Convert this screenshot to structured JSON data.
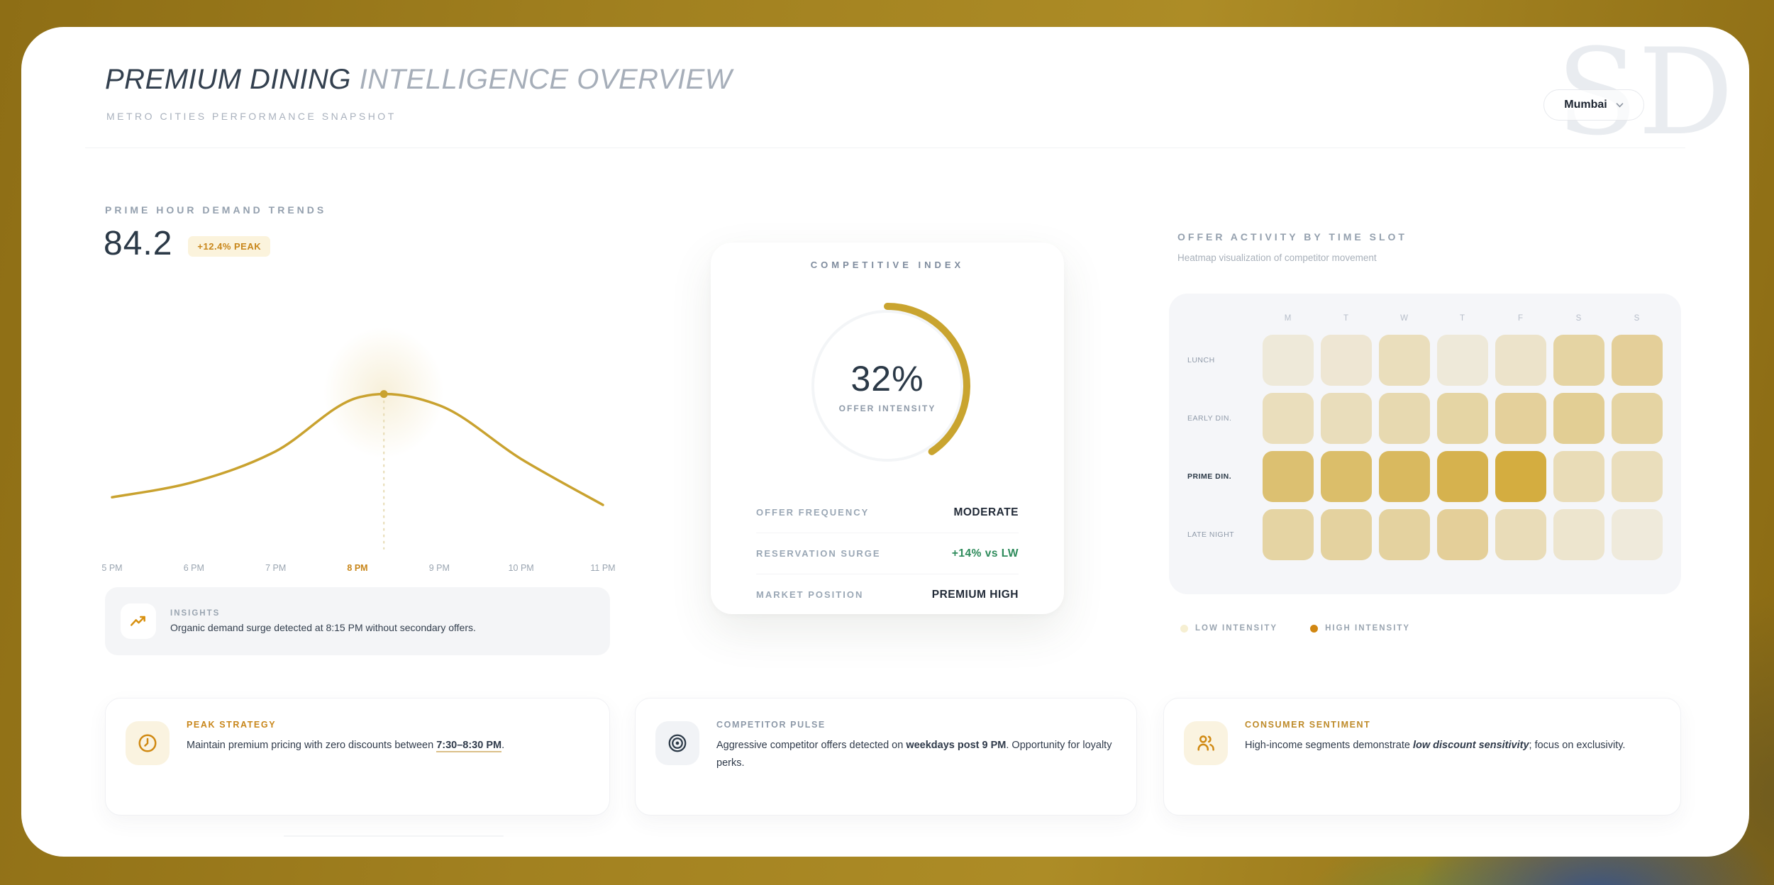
{
  "header": {
    "title_primary": "PREMIUM DINING",
    "title_secondary": "INTELLIGENCE OVERVIEW",
    "subtitle": "METRO CITIES PERFORMANCE SNAPSHOT",
    "city": "Mumbai",
    "watermark": "SD"
  },
  "demand": {
    "section_title": "PRIME HOUR DEMAND TRENDS",
    "score": "84.2",
    "badge": "+12.4% PEAK",
    "insights_label": "INSIGHTS",
    "insights_text": "Organic demand surge detected at 8:15 PM without secondary offers."
  },
  "competitive": {
    "title": "COMPETITIVE INDEX",
    "gauge_value": "32%",
    "gauge_percent": 32,
    "gauge_caption": "OFFER INTENSITY",
    "gauge_color": "#C9A42F",
    "rows": [
      {
        "label": "OFFER FREQUENCY",
        "value": "MODERATE",
        "value_color": "#222B38"
      },
      {
        "label": "RESERVATION SURGE",
        "value": "+14% vs LW",
        "value_color": "#2E8B5B"
      },
      {
        "label": "MARKET POSITION",
        "value": "PREMIUM HIGH",
        "value_color": "#222B38"
      }
    ]
  },
  "offer_activity": {
    "title": "OFFER ACTIVITY BY TIME SLOT",
    "subtitle": "Heatmap visualization of competitor movement",
    "legend": [
      {
        "label": "LOW INTENSITY",
        "color": "#F6EFD2"
      },
      {
        "label": "HIGH INTENSITY",
        "color": "#D18712"
      }
    ]
  },
  "insight_cards": [
    {
      "title": "PEAK STRATEGY",
      "icon": "clock-icon",
      "title_color": "#C8861A",
      "text": [
        {
          "t": "Maintain premium pricing with zero discounts between "
        },
        {
          "t": "7:30–8:30 PM",
          "b": true,
          "u": true
        },
        {
          "t": "."
        }
      ]
    },
    {
      "title": "COMPETITOR PULSE",
      "icon": "target-icon",
      "title_color": "#8D99A8",
      "text": [
        {
          "t": "Aggressive competitor offers detected on "
        },
        {
          "t": "weekdays post 9 PM",
          "b": true
        },
        {
          "t": ". Opportunity for loyalty perks."
        }
      ]
    },
    {
      "title": "CONSUMER SENTIMENT",
      "icon": "users-icon",
      "title_color": "#BE8A28",
      "text": [
        {
          "t": "High-income segments demonstrate "
        },
        {
          "t": "low discount sensitivity",
          "b": true,
          "i": true
        },
        {
          "t": "; focus on exclusivity."
        }
      ]
    }
  ],
  "chart_data": [
    {
      "type": "line",
      "title": "Prime Hour Demand Trends",
      "x": [
        "5 PM",
        "6 PM",
        "7 PM",
        "8 PM",
        "9 PM",
        "10 PM",
        "11 PM"
      ],
      "values": [
        32,
        36,
        44,
        58,
        56,
        42,
        30
      ],
      "ylim": [
        0,
        100
      ],
      "highlight_x": "8 PM",
      "peak_annotation": "organic surge at 8:15 PM",
      "line_color": "#C9A22F",
      "marker_color": "#C9A22F",
      "legend_position": "none",
      "grid": false
    },
    {
      "type": "heatmap",
      "title": "Offer Activity by Time Slot",
      "columns": [
        "M",
        "T",
        "W",
        "T",
        "F",
        "S",
        "S"
      ],
      "rows": [
        "LUNCH",
        "EARLY DIN.",
        "PRIME DIN.",
        "LATE NIGHT"
      ],
      "values": [
        [
          0.1,
          0.13,
          0.26,
          0.1,
          0.18,
          0.42,
          0.48
        ],
        [
          0.26,
          0.27,
          0.33,
          0.4,
          0.46,
          0.5,
          0.42
        ],
        [
          0.72,
          0.75,
          0.82,
          0.92,
          1.0,
          0.3,
          0.26
        ],
        [
          0.42,
          0.44,
          0.44,
          0.48,
          0.28,
          0.16,
          0.08
        ]
      ],
      "base_color": "#D0A630",
      "emphasis_row": "PRIME DIN."
    }
  ]
}
